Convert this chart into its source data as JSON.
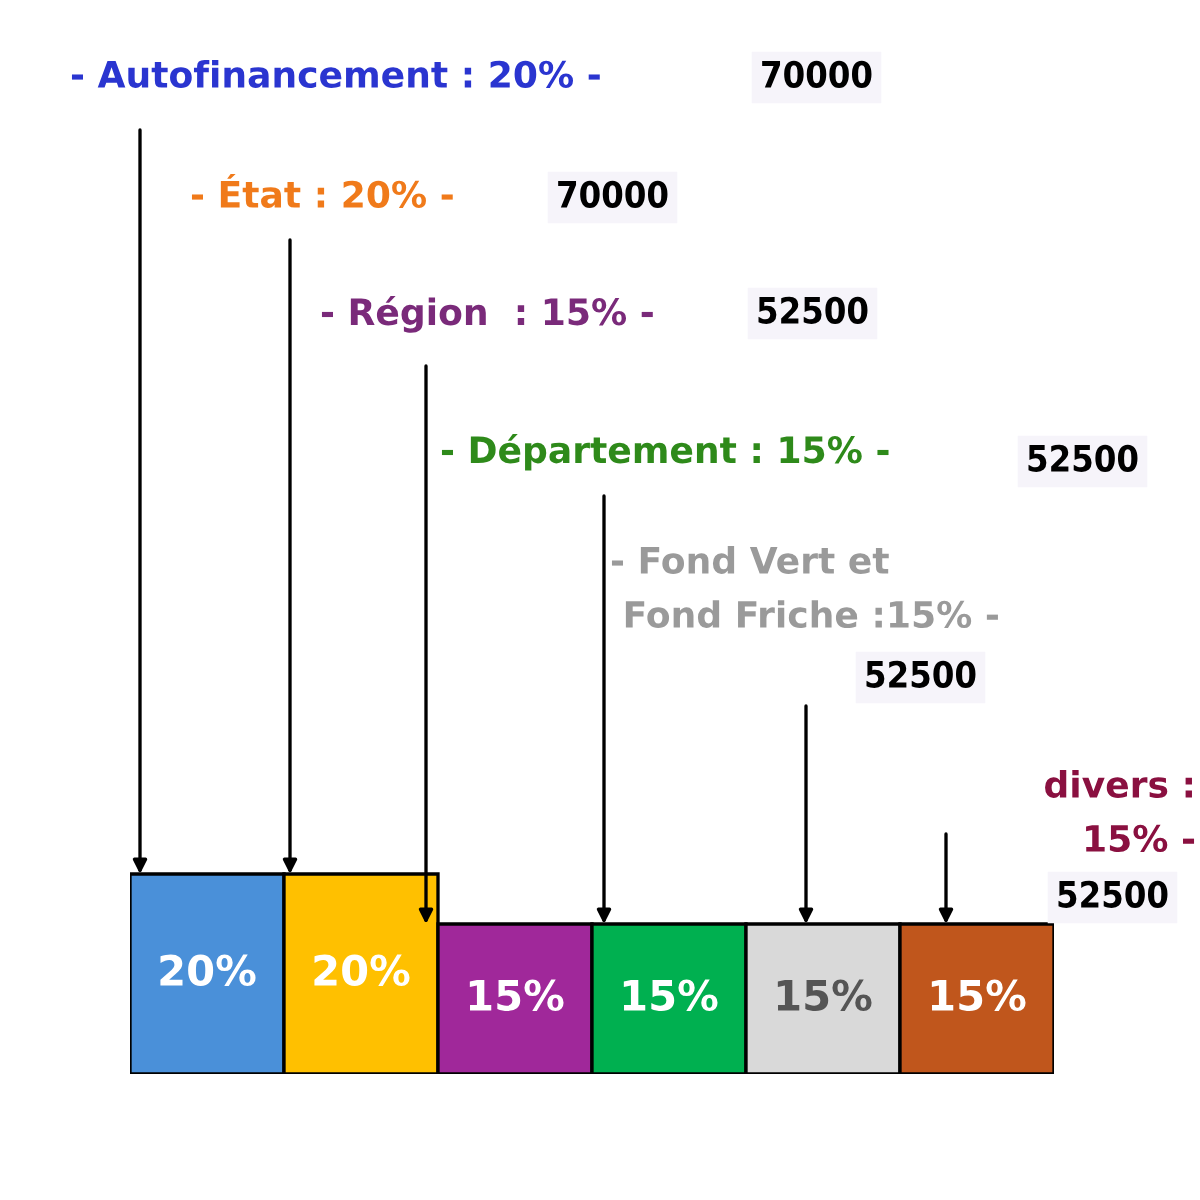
{
  "chart_data": {
    "type": "bar",
    "categories": [
      null,
      null,
      null,
      null,
      null,
      null
    ],
    "values": [
      20,
      20,
      15,
      15,
      15,
      15
    ],
    "colors": [
      "#4a90d9",
      "#ffc000",
      "#a0289a",
      "#00b050",
      "#d9d9d9",
      "#c0561c"
    ],
    "value_labels": [
      "20%",
      "20%",
      "15%",
      "15%",
      "15%",
      "15%"
    ],
    "tick_labels": false,
    "grid": false,
    "legend": false,
    "annotations": [
      "- Autofinancement : 20% -",
      "70000",
      "- État : 20% -",
      "70000",
      "- Région  : 15% -",
      "52500",
      "- Département : 15% -",
      "52500",
      "- Fond Vert et\n Fond Friche :15% -",
      "52500",
      "divers :\n15% -",
      "52500"
    ]
  }
}
